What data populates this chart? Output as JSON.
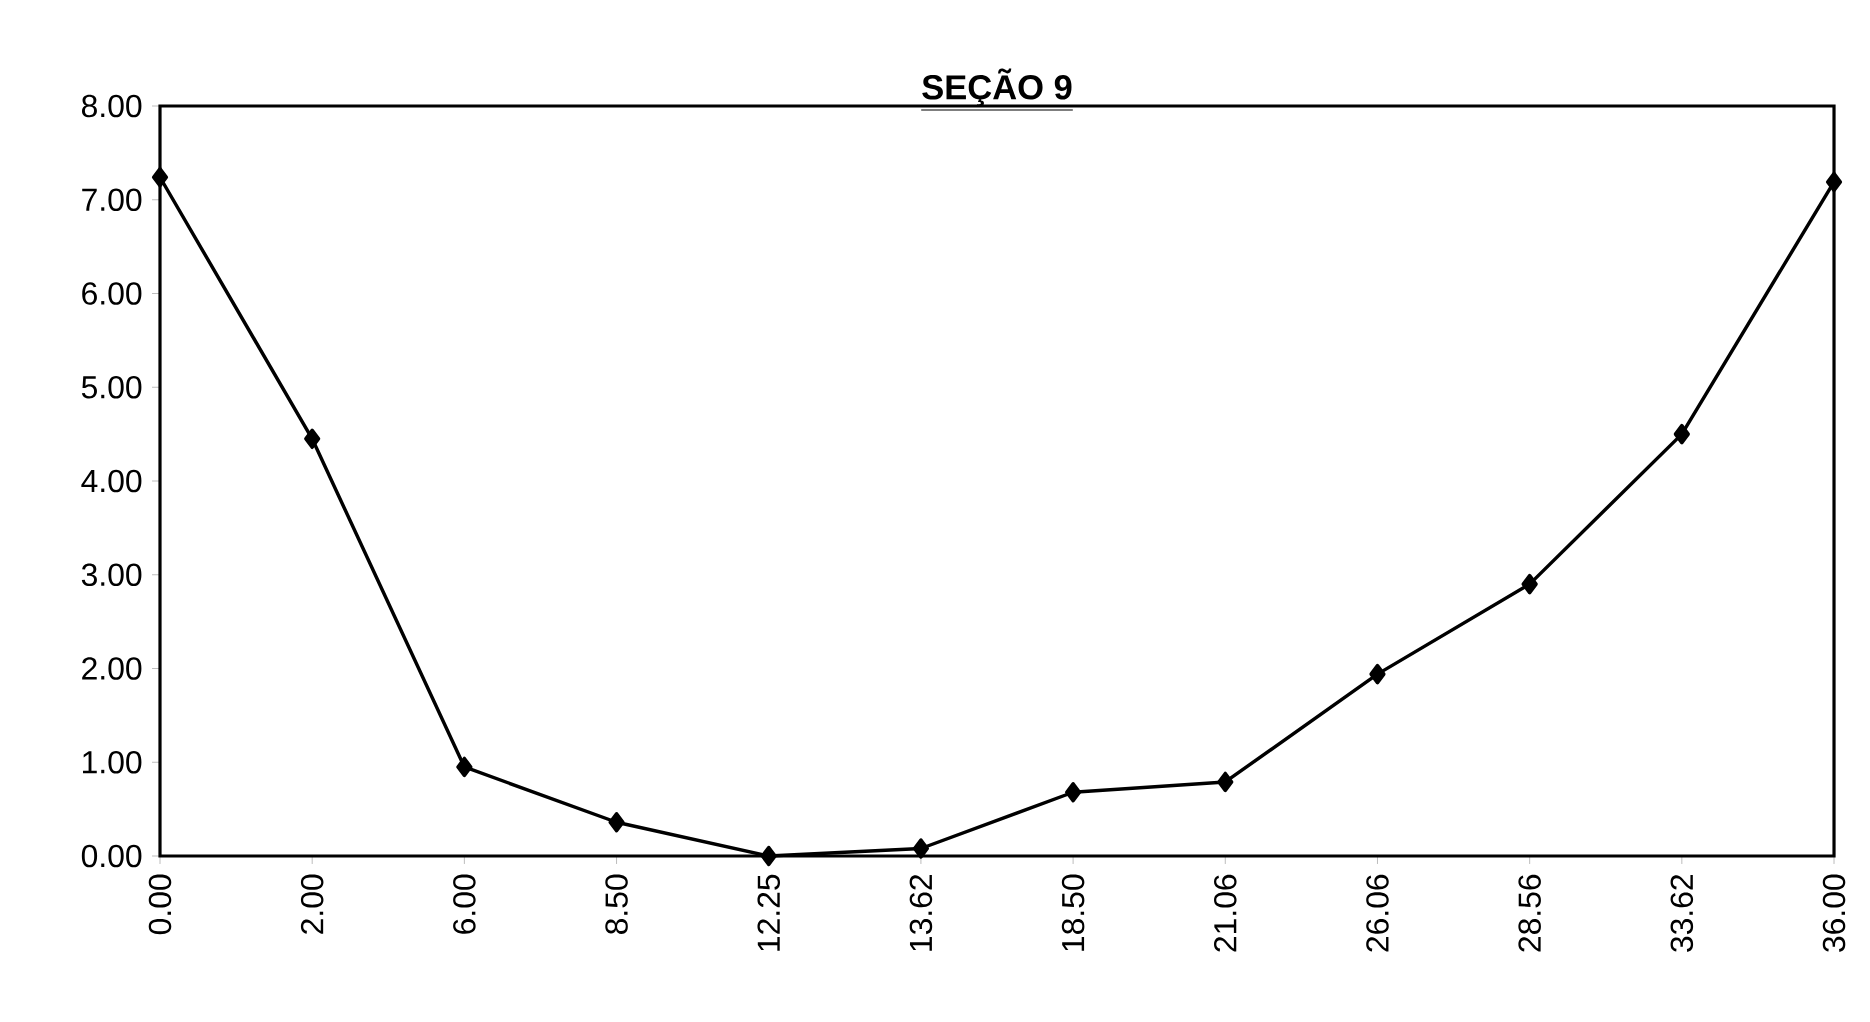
{
  "chart_data": {
    "type": "line",
    "title": "SEÇÃO  9",
    "categories": [
      "0.00",
      "2.00",
      "6.00",
      "8.50",
      "12.25",
      "13.62",
      "18.50",
      "21.06",
      "26.06",
      "28.56",
      "33.62",
      "36.00"
    ],
    "series": [
      {
        "color": "#000000",
        "values": [
          7.24,
          4.45,
          0.95,
          0.36,
          0.0,
          0.08,
          0.68,
          0.79,
          1.94,
          2.9,
          4.5,
          7.19
        ]
      }
    ],
    "ylim": [
      0,
      8
    ],
    "yticks": [
      {
        "value": 0,
        "label": "0.00"
      },
      {
        "value": 1,
        "label": "1.00"
      },
      {
        "value": 2,
        "label": "2.00"
      },
      {
        "value": 3,
        "label": "3.00"
      },
      {
        "value": 4,
        "label": "4.00"
      },
      {
        "value": 5,
        "label": "5.00"
      },
      {
        "value": 6,
        "label": "6.00"
      },
      {
        "value": 7,
        "label": "7.00"
      },
      {
        "value": 8,
        "label": "8.00"
      }
    ],
    "marker": "diamond",
    "line_style": "solid"
  }
}
